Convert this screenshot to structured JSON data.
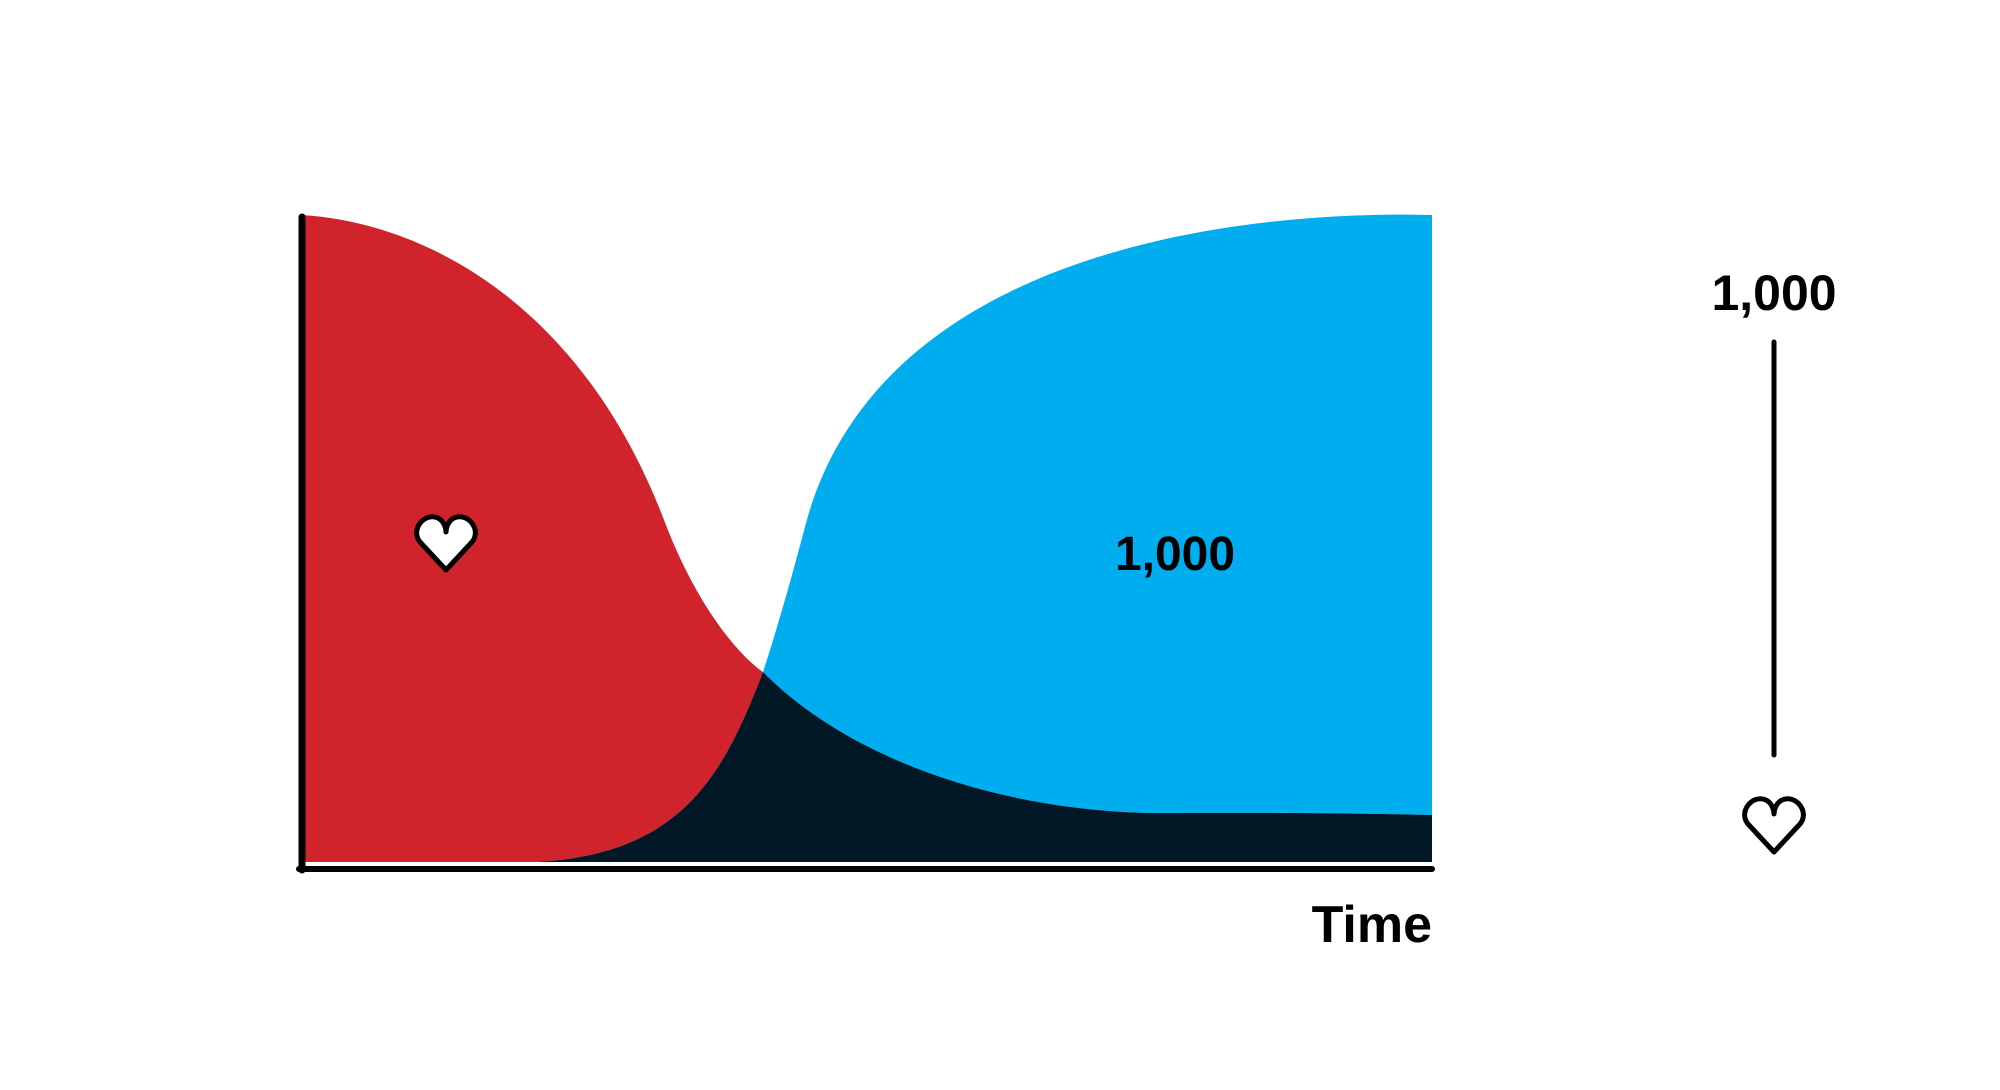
{
  "diagram": {
    "x_axis_label": "Time",
    "center_value_label": "1,000",
    "scale_top_label": "1,000",
    "icons": {
      "chart_region_icon": "heart-outline-icon",
      "scale_bottom_icon": "heart-outline-icon"
    }
  },
  "colors": {
    "red_region": "#d0232b",
    "blue_region": "#00aeef",
    "dark_region": "#021827",
    "axis": "#000000",
    "background": "#ffffff"
  }
}
